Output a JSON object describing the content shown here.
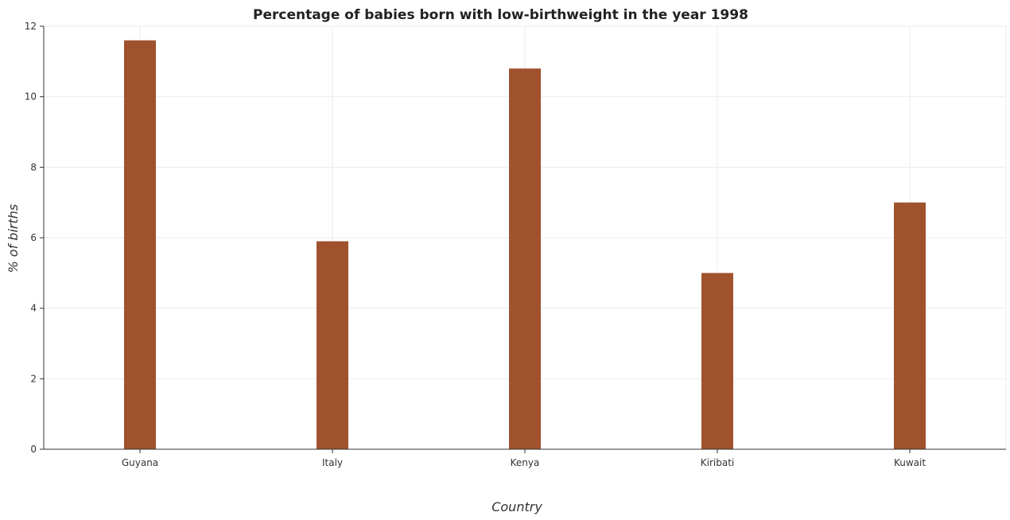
{
  "chart_data": {
    "type": "bar",
    "title": "Percentage of babies born with low-birthweight in the year 1998",
    "xlabel": "Country",
    "ylabel": "% of births",
    "categories": [
      "Guyana",
      "Italy",
      "Kenya",
      "Kiribati",
      "Kuwait"
    ],
    "values": [
      11.6,
      5.9,
      10.8,
      5.0,
      7.0
    ],
    "ylim": [
      0,
      12
    ],
    "yticks": [
      0,
      2,
      4,
      6,
      8,
      10,
      12
    ],
    "grid": true,
    "legend": "none",
    "bar_color": "#a0522d"
  }
}
